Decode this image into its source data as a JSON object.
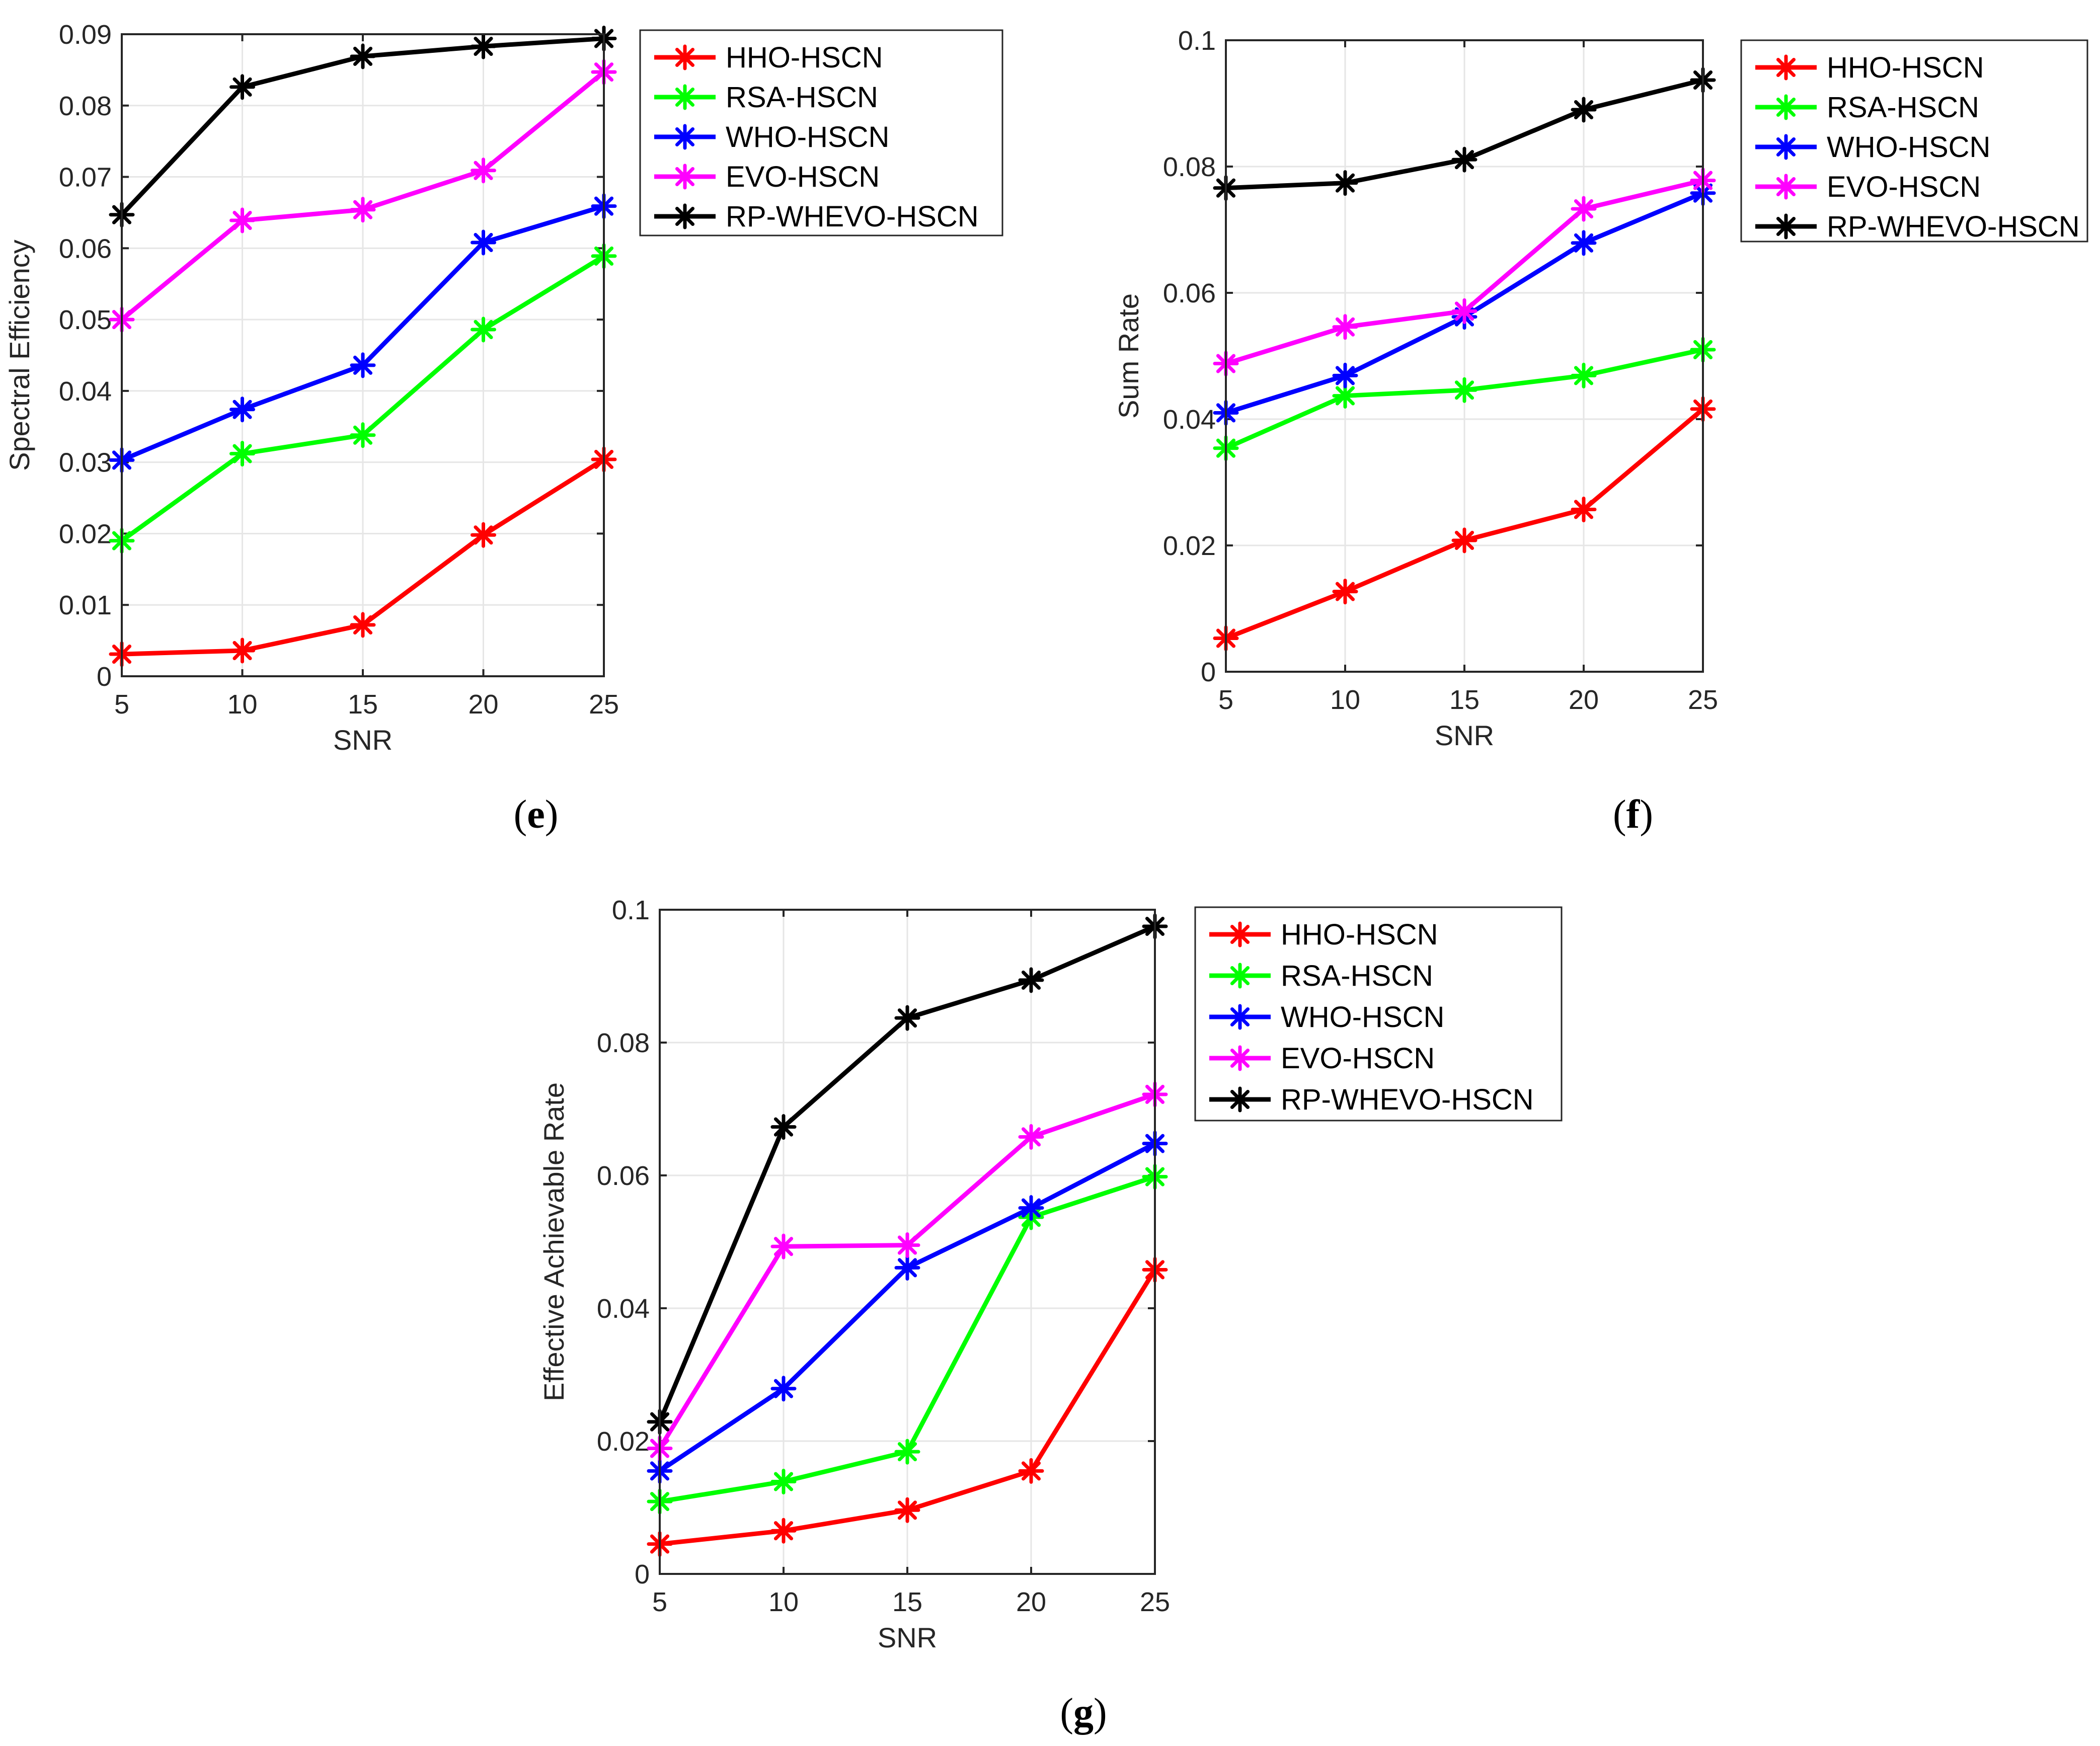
{
  "colors": {
    "HHO-HSCN": "#ff0000",
    "RSA-HSCN": "#00ff00",
    "WHO-HSCN": "#0000ff",
    "EVO-HSCN": "#ff00ff",
    "RP-WHEVO-HSCN": "#000000"
  },
  "chart_data": [
    {
      "type": "line",
      "panel_label": "e",
      "xlabel": "SNR",
      "ylabel": "Spectral Efficiency",
      "x": [
        5,
        10,
        15,
        20,
        25
      ],
      "xlim": [
        5,
        25
      ],
      "ylim": [
        0,
        0.09
      ],
      "xticks": [
        "5",
        "10",
        "15",
        "20",
        "25"
      ],
      "yticks": [
        "0",
        "0.01",
        "0.02",
        "0.03",
        "0.04",
        "0.05",
        "0.06",
        "0.07",
        "0.08",
        "0.09"
      ],
      "grid": true,
      "legend_position": "outside-right",
      "series": [
        {
          "name": "HHO-HSCN",
          "values": [
            0.0031,
            0.0036,
            0.0072,
            0.0198,
            0.0304
          ]
        },
        {
          "name": "RSA-HSCN",
          "values": [
            0.019,
            0.0312,
            0.0338,
            0.0486,
            0.0589
          ]
        },
        {
          "name": "WHO-HSCN",
          "values": [
            0.0303,
            0.0374,
            0.0436,
            0.0608,
            0.0659
          ]
        },
        {
          "name": "EVO-HSCN",
          "values": [
            0.05,
            0.0639,
            0.0654,
            0.0709,
            0.0847
          ]
        },
        {
          "name": "RP-WHEVO-HSCN",
          "values": [
            0.0647,
            0.0826,
            0.0869,
            0.0883,
            0.0894
          ]
        }
      ]
    },
    {
      "type": "line",
      "panel_label": "f",
      "xlabel": "SNR",
      "ylabel": "Sum Rate",
      "x": [
        5,
        10,
        15,
        20,
        25
      ],
      "xlim": [
        5,
        25
      ],
      "ylim": [
        0,
        0.1
      ],
      "xticks": [
        "5",
        "10",
        "15",
        "20",
        "25"
      ],
      "yticks": [
        "0",
        "0.02",
        "0.04",
        "0.06",
        "0.08",
        "0.1"
      ],
      "grid": true,
      "legend_position": "outside-right",
      "series": [
        {
          "name": "HHO-HSCN",
          "values": [
            0.0053,
            0.0127,
            0.0208,
            0.0257,
            0.0416
          ]
        },
        {
          "name": "RSA-HSCN",
          "values": [
            0.0354,
            0.0437,
            0.0446,
            0.0469,
            0.051
          ]
        },
        {
          "name": "WHO-HSCN",
          "values": [
            0.041,
            0.0469,
            0.0562,
            0.0679,
            0.0758
          ]
        },
        {
          "name": "EVO-HSCN",
          "values": [
            0.0488,
            0.0546,
            0.0571,
            0.0733,
            0.0778
          ]
        },
        {
          "name": "RP-WHEVO-HSCN",
          "values": [
            0.0766,
            0.0774,
            0.0811,
            0.089,
            0.0937
          ]
        }
      ]
    },
    {
      "type": "line",
      "panel_label": "g",
      "xlabel": "SNR",
      "ylabel": "Effective Achievable Rate",
      "x": [
        5,
        10,
        15,
        20,
        25
      ],
      "xlim": [
        5,
        25
      ],
      "ylim": [
        0,
        0.1
      ],
      "xticks": [
        "5",
        "10",
        "15",
        "20",
        "25"
      ],
      "yticks": [
        "0",
        "0.02",
        "0.04",
        "0.06",
        "0.08",
        "0.1"
      ],
      "grid": true,
      "legend_position": "outside-right",
      "series": [
        {
          "name": "HHO-HSCN",
          "values": [
            0.0045,
            0.0065,
            0.0096,
            0.0155,
            0.0458
          ]
        },
        {
          "name": "RSA-HSCN",
          "values": [
            0.0109,
            0.0139,
            0.0184,
            0.0537,
            0.0598
          ]
        },
        {
          "name": "WHO-HSCN",
          "values": [
            0.0155,
            0.0279,
            0.0461,
            0.0551,
            0.0648
          ]
        },
        {
          "name": "EVO-HSCN",
          "values": [
            0.0189,
            0.0493,
            0.0495,
            0.0658,
            0.0722
          ]
        },
        {
          "name": "RP-WHEVO-HSCN",
          "values": [
            0.0229,
            0.0673,
            0.0837,
            0.0894,
            0.0975
          ]
        }
      ]
    }
  ]
}
